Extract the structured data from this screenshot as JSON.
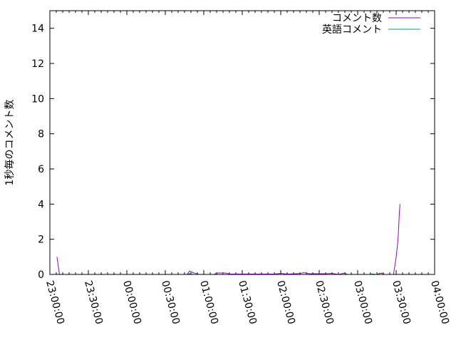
{
  "chart_data": {
    "type": "line",
    "ylabel": "1秒毎のコメント数",
    "xlabel": "",
    "xlim": [
      "23:00:00",
      "04:00:00"
    ],
    "ylim": [
      0,
      15
    ],
    "x_ticks": [
      "23:00:00",
      "23:30:00",
      "00:00:00",
      "00:30:00",
      "01:00:00",
      "01:30:00",
      "02:00:00",
      "02:30:00",
      "03:00:00",
      "03:30:00",
      "04:00:00"
    ],
    "y_ticks": [
      0,
      2,
      4,
      6,
      8,
      10,
      12,
      14
    ],
    "grid": false,
    "legend_position": "top-right",
    "series": [
      {
        "name": "コメント数",
        "color": "#9400d3",
        "points": [
          [
            "23:05:30",
            1
          ],
          [
            "23:07:30",
            0
          ],
          [
            "00:47:00",
            0
          ],
          [
            "00:49:00",
            0.2
          ],
          [
            "00:51:30",
            0.1
          ],
          [
            "00:54:00",
            0.05
          ],
          [
            "00:56:00",
            0
          ],
          [
            "01:08:00",
            0
          ],
          [
            "01:10:00",
            0.08
          ],
          [
            "01:17:00",
            0.08
          ],
          [
            "01:20:00",
            0.02
          ],
          [
            "01:35:00",
            0.02
          ],
          [
            "01:55:00",
            0.02
          ],
          [
            "02:00:00",
            0.06
          ],
          [
            "02:05:00",
            0.02
          ],
          [
            "02:15:00",
            0.05
          ],
          [
            "02:18:00",
            0.1
          ],
          [
            "02:22:00",
            0.04
          ],
          [
            "02:35:00",
            0.04
          ],
          [
            "02:40:00",
            0.06
          ],
          [
            "02:45:00",
            0
          ],
          [
            "02:50:00",
            0.08
          ],
          [
            "02:52:00",
            0
          ],
          [
            "03:15:00",
            0
          ],
          [
            "03:18:00",
            0.08
          ],
          [
            "03:21:00",
            0
          ],
          [
            "03:28:00",
            0
          ],
          [
            "03:30:00",
            1
          ],
          [
            "03:31:30",
            2
          ],
          [
            "03:32:30",
            3.5
          ],
          [
            "03:33:00",
            4
          ]
        ]
      },
      {
        "name": "英語コメント",
        "color": "#009e73",
        "points": [
          [
            "23:00:00",
            0
          ],
          [
            "00:47:00",
            0
          ],
          [
            "00:49:00",
            0.05
          ],
          [
            "00:51:00",
            0
          ],
          [
            "01:25:00",
            0
          ],
          [
            "01:27:00",
            0.03
          ],
          [
            "01:29:00",
            0
          ],
          [
            "02:25:00",
            0
          ],
          [
            "02:27:00",
            0.03
          ],
          [
            "02:29:00",
            0
          ],
          [
            "03:10:00",
            0
          ],
          [
            "03:12:00",
            0.03
          ],
          [
            "03:14:00",
            0
          ],
          [
            "03:33:00",
            0
          ]
        ]
      }
    ]
  }
}
